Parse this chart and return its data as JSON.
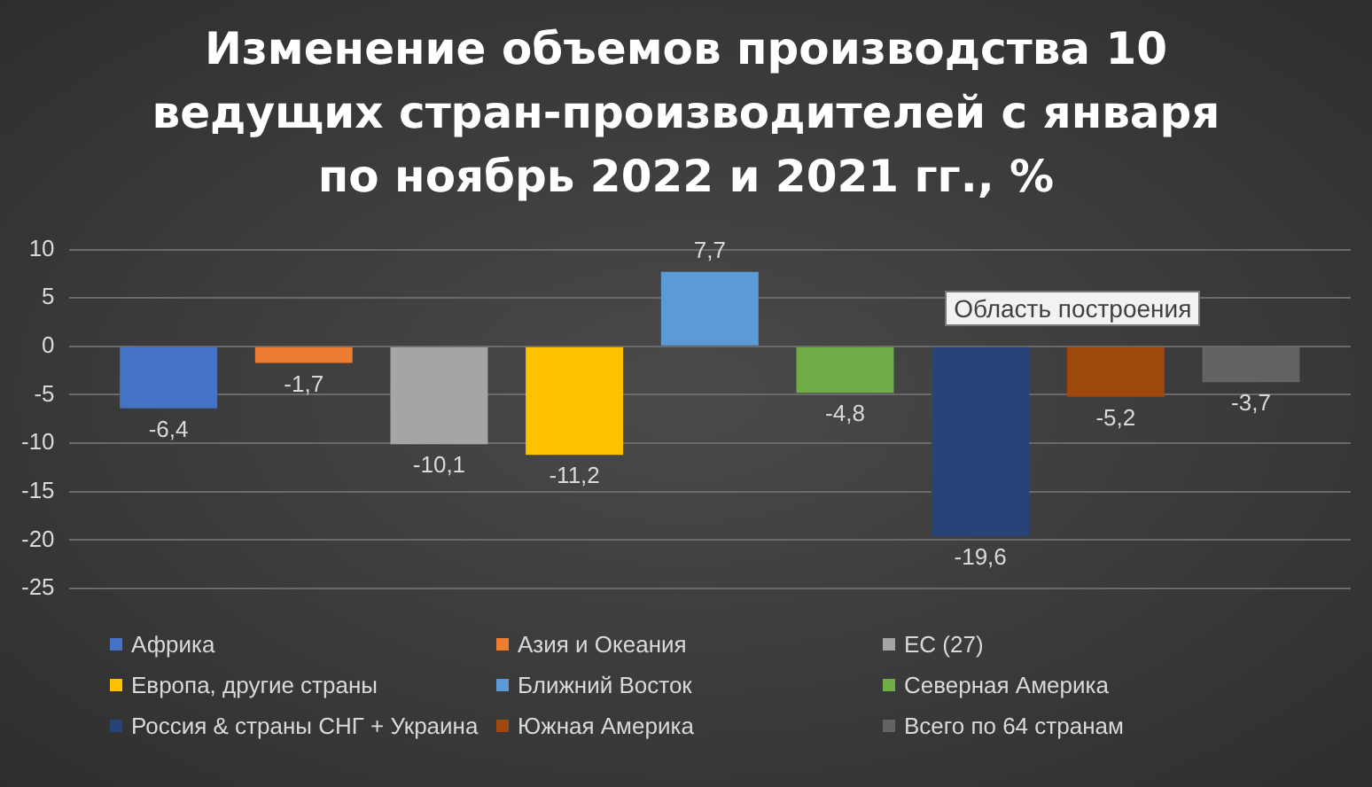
{
  "chart_data": {
    "type": "bar",
    "title": "Изменение объемов производства 10 ведущих стран-производителей с января по ноябрь 2022 и 2021 гг., %",
    "categories": [
      null
    ],
    "series": [
      {
        "name": "Африка",
        "color": "#4472c4",
        "values": [
          -6.4
        ],
        "value_labels": [
          "-6,4"
        ]
      },
      {
        "name": "Азия и Океания",
        "color": "#ed7d31",
        "values": [
          -1.7
        ],
        "value_labels": [
          "-1,7"
        ]
      },
      {
        "name": "ЕС (27)",
        "color": "#a5a5a5",
        "values": [
          -10.1
        ],
        "value_labels": [
          "-10,1"
        ]
      },
      {
        "name": "Европа, другие страны",
        "color": "#ffc000",
        "values": [
          -11.2
        ],
        "value_labels": [
          "-11,2"
        ]
      },
      {
        "name": "Ближний Восток",
        "color": "#5b9bd5",
        "values": [
          7.7
        ],
        "value_labels": [
          "7,7"
        ]
      },
      {
        "name": "Северная Америка",
        "color": "#70ad47",
        "values": [
          -4.8
        ],
        "value_labels": [
          "-4,8"
        ]
      },
      {
        "name": "Россия & страны СНГ + Украина",
        "color": "#264478",
        "values": [
          -19.6
        ],
        "value_labels": [
          "-19,6"
        ]
      },
      {
        "name": "Южная Америка",
        "color": "#9e480e",
        "values": [
          -5.2
        ],
        "value_labels": [
          "-5,2"
        ]
      },
      {
        "name": "Всего по 64 странам",
        "color": "#636363",
        "values": [
          -3.7
        ],
        "value_labels": [
          "-3,7"
        ]
      }
    ],
    "ylim": [
      -25,
      10
    ],
    "yticks": [
      -25,
      -20,
      -15,
      -10,
      -5,
      0,
      5,
      10
    ],
    "grid": "y",
    "legend": "bottom",
    "tick_labels": "y",
    "annotations": [
      "Область построения"
    ]
  }
}
